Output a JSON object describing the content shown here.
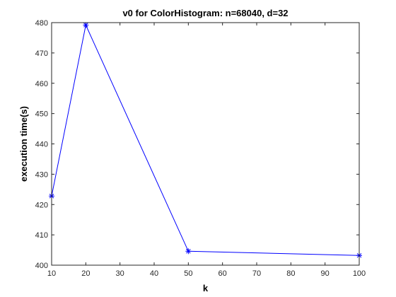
{
  "chart_data": {
    "type": "line",
    "title": "v0 for ColorHistogram: n=68040, d=32",
    "xlabel": "k",
    "ylabel": "execution time(s)",
    "xlim": [
      10,
      100
    ],
    "ylim": [
      400,
      480
    ],
    "xticks": [
      10,
      20,
      30,
      40,
      50,
      60,
      70,
      80,
      90,
      100
    ],
    "yticks": [
      400,
      410,
      420,
      430,
      440,
      450,
      460,
      470,
      480
    ],
    "grid": false,
    "series": [
      {
        "marker": "asterisk",
        "color": "#0000ff",
        "x": [
          10,
          20,
          50,
          100
        ],
        "y": [
          422.8,
          479.2,
          404.6,
          403.2
        ]
      }
    ]
  }
}
